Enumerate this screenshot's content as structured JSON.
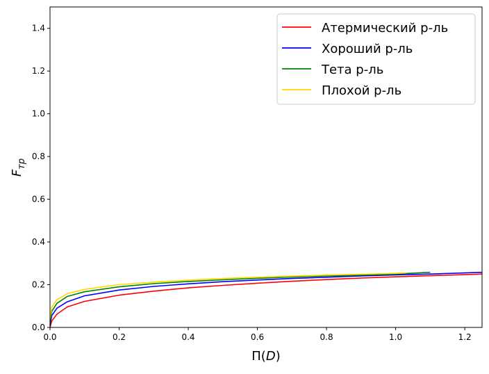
{
  "chart_data": {
    "type": "line",
    "xlabel_main": "Π(",
    "xlabel_var": "D",
    "xlabel_close": ")",
    "ylabel_main": "F",
    "ylabel_sub": "тр",
    "xlim": [
      0,
      1.25
    ],
    "ylim": [
      0,
      1.5
    ],
    "xticks": [
      "0.0",
      "0.2",
      "0.4",
      "0.6",
      "0.8",
      "1.0",
      "1.2"
    ],
    "yticks": [
      "0.0",
      "0.2",
      "0.4",
      "0.6",
      "0.8",
      "1.0",
      "1.2",
      "1.4"
    ],
    "grid": false,
    "legend_position": "top-right",
    "series": [
      {
        "name": "Атермический р-ль",
        "color": "#ff0000",
        "x": [
          0,
          0.005,
          0.02,
          0.05,
          0.1,
          0.2,
          0.3,
          0.4,
          0.5,
          0.6,
          0.7,
          0.8,
          0.9,
          1.0,
          1.1,
          1.2,
          1.25
        ],
        "y": [
          0,
          0.03,
          0.062,
          0.096,
          0.122,
          0.151,
          0.17,
          0.185,
          0.197,
          0.207,
          0.216,
          0.224,
          0.231,
          0.237,
          0.242,
          0.247,
          0.25
        ]
      },
      {
        "name": "Хороший р-ль",
        "color": "#0000ff",
        "x": [
          0,
          0.005,
          0.02,
          0.05,
          0.1,
          0.2,
          0.3,
          0.4,
          0.5,
          0.6,
          0.7,
          0.8,
          0.9,
          1.0,
          1.1,
          1.2,
          1.25
        ],
        "y": [
          0.01,
          0.055,
          0.09,
          0.12,
          0.148,
          0.175,
          0.192,
          0.204,
          0.214,
          0.222,
          0.229,
          0.235,
          0.241,
          0.246,
          0.25,
          0.255,
          0.258
        ]
      },
      {
        "name": "Тета р-ль",
        "color": "#008000",
        "x": [
          0,
          0.005,
          0.02,
          0.05,
          0.1,
          0.2,
          0.3,
          0.4,
          0.5,
          0.6,
          0.7,
          0.8,
          0.9,
          1.0,
          1.1
        ],
        "y": [
          0.025,
          0.075,
          0.113,
          0.145,
          0.167,
          0.19,
          0.205,
          0.215,
          0.223,
          0.23,
          0.236,
          0.241,
          0.245,
          0.25,
          0.258
        ]
      },
      {
        "name": "Плохой р-ль",
        "color": "#ffd700",
        "x": [
          0,
          0.005,
          0.02,
          0.05,
          0.1,
          0.2,
          0.3,
          0.4,
          0.5,
          0.6,
          0.7,
          0.8,
          0.9,
          1.0,
          1.03
        ],
        "y": [
          0.04,
          0.095,
          0.13,
          0.158,
          0.178,
          0.2,
          0.212,
          0.221,
          0.229,
          0.235,
          0.24,
          0.245,
          0.249,
          0.253,
          0.255
        ]
      }
    ]
  }
}
